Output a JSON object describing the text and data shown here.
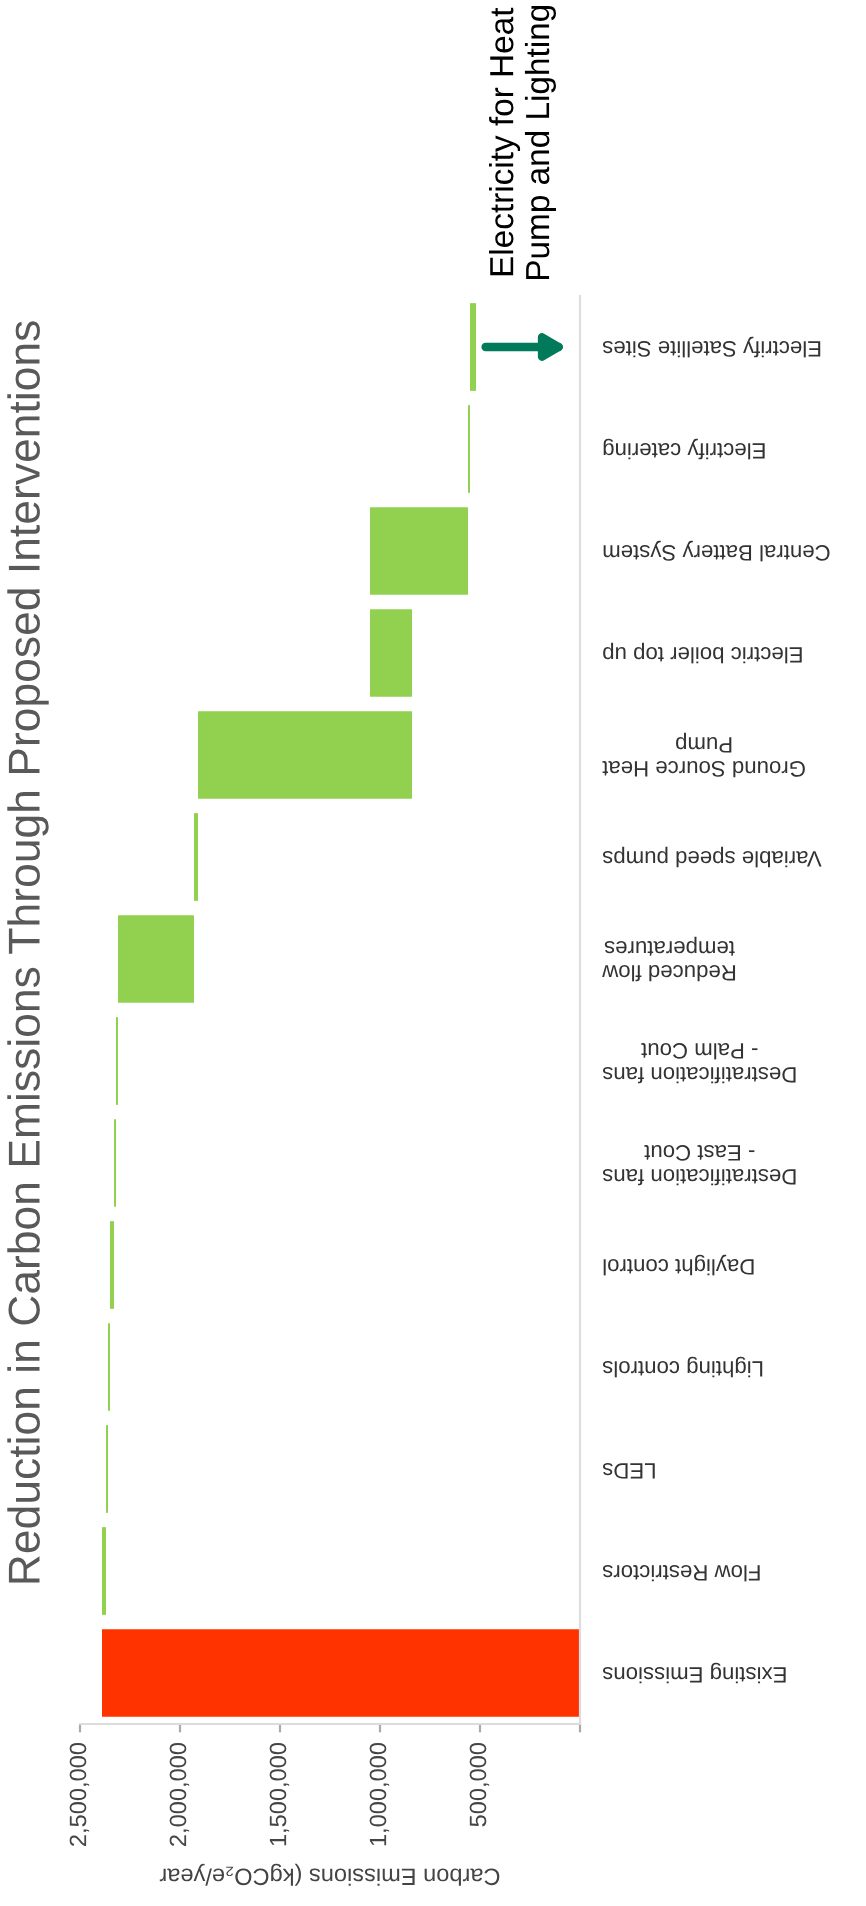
{
  "chart_data": {
    "type": "bar",
    "orientation": "horizontal",
    "title": "Reduction in Carbon Emissions Through Proposed Interventions",
    "xlabel": "Carbon Emissions (kgCO₂e/year",
    "categories": [
      "Electrify Satellite Sites",
      "Electrify catering",
      "Central Battery System",
      "Electric boiler top up",
      "Ground Source Heat\nPump",
      "Variable speed pumps",
      "Reduced flow\ntemperatures",
      "Destratification fans\n- Palm Cout",
      "Destratification fans\n- East Cout",
      "Daylight control",
      "Lighting controls",
      "LEDs",
      "Flow Restrictors",
      "Existing Emissions"
    ],
    "values": [
      -30000,
      -10000,
      -490000,
      210000,
      -1070000,
      -20000,
      -380000,
      -10000,
      -10000,
      -20000,
      -10000,
      -10000,
      -20000,
      2390000
    ],
    "base": [
      550000,
      560000,
      1050000,
      840000,
      1910000,
      1930000,
      2310000,
      2320000,
      2330000,
      2350000,
      2360000,
      2370000,
      2390000,
      0
    ],
    "colors": [
      "#92d050",
      "#92d050",
      "#92d050",
      "#92d050",
      "#92d050",
      "#92d050",
      "#92d050",
      "#92d050",
      "#92d050",
      "#92d050",
      "#92d050",
      "#92d050",
      "#92d050",
      "#ff3300"
    ],
    "xlim": [
      2500000,
      0
    ],
    "xticks": [
      {
        "value": 2500000,
        "label": "2,500,000"
      },
      {
        "value": 2000000,
        "label": "2,000,000"
      },
      {
        "value": 1500000,
        "label": "1,500,000"
      },
      {
        "value": 1000000,
        "label": "1,000,000"
      },
      {
        "value": 500000,
        "label": "500,000"
      },
      {
        "value": 0,
        "label": null
      }
    ],
    "annotations": [
      {
        "text": "Electricity for Heat\nPump and Lighting",
        "x": 520000,
        "y": "Electrify Satellite Sites"
      }
    ],
    "grid": false,
    "legend": false
  }
}
